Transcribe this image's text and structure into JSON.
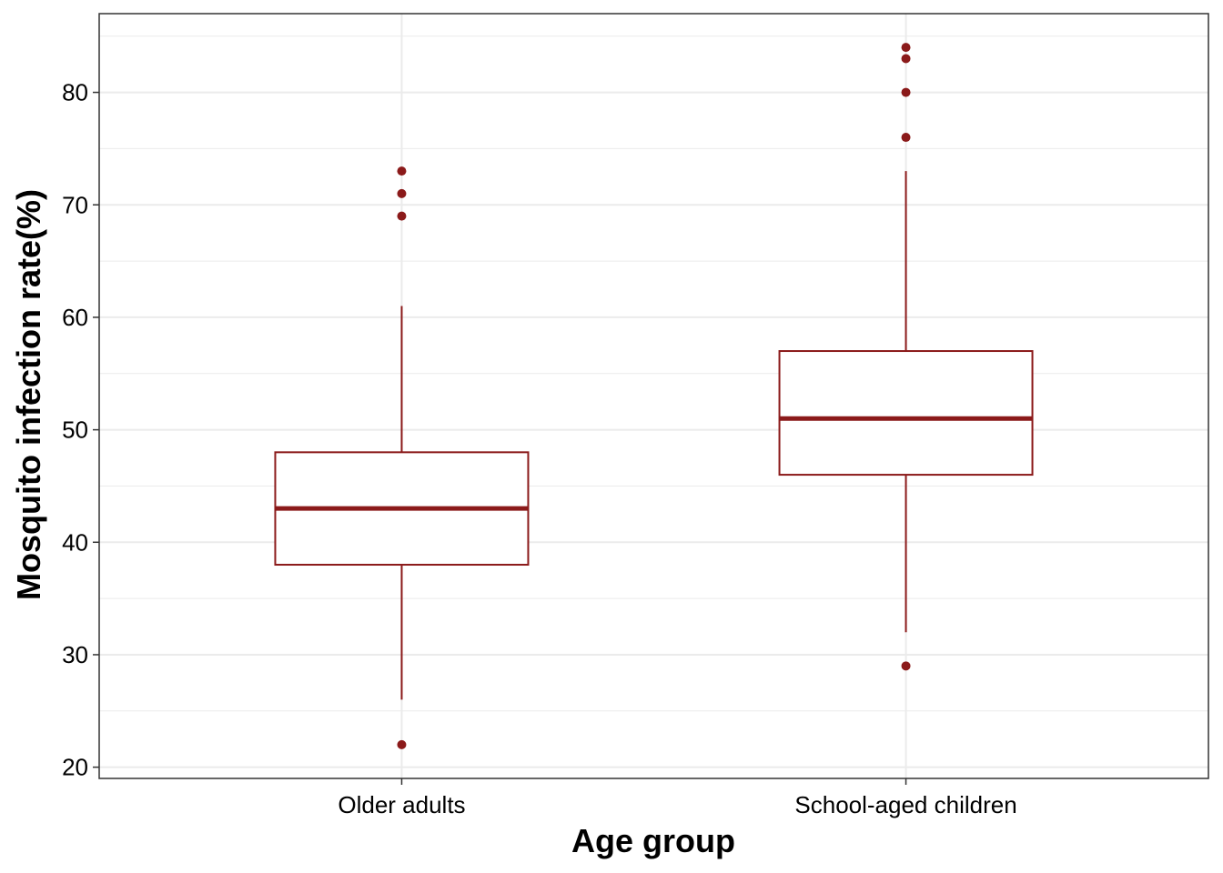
{
  "chart_data": {
    "type": "boxplot",
    "title": "",
    "xlabel": "Age group",
    "ylabel": "Mosquito infection rate(%)",
    "ylim": [
      19,
      87
    ],
    "y_ticks": [
      20,
      30,
      40,
      50,
      60,
      70,
      80
    ],
    "grid": true,
    "categories": [
      "Older adults",
      "School-aged children"
    ],
    "boxes": [
      {
        "category": "Older adults",
        "whisker_low": 26,
        "q1": 38,
        "median": 43,
        "q3": 48,
        "whisker_high": 61,
        "outliers": [
          22,
          69,
          71,
          73
        ]
      },
      {
        "category": "School-aged children",
        "whisker_low": 32,
        "q1": 46,
        "median": 51,
        "q3": 57,
        "whisker_high": 73,
        "outliers": [
          29,
          76,
          80,
          83,
          84
        ]
      }
    ],
    "colors": {
      "box": "#8b1a1a",
      "grid": "#ebebeb",
      "panel_border": "#333333"
    }
  }
}
